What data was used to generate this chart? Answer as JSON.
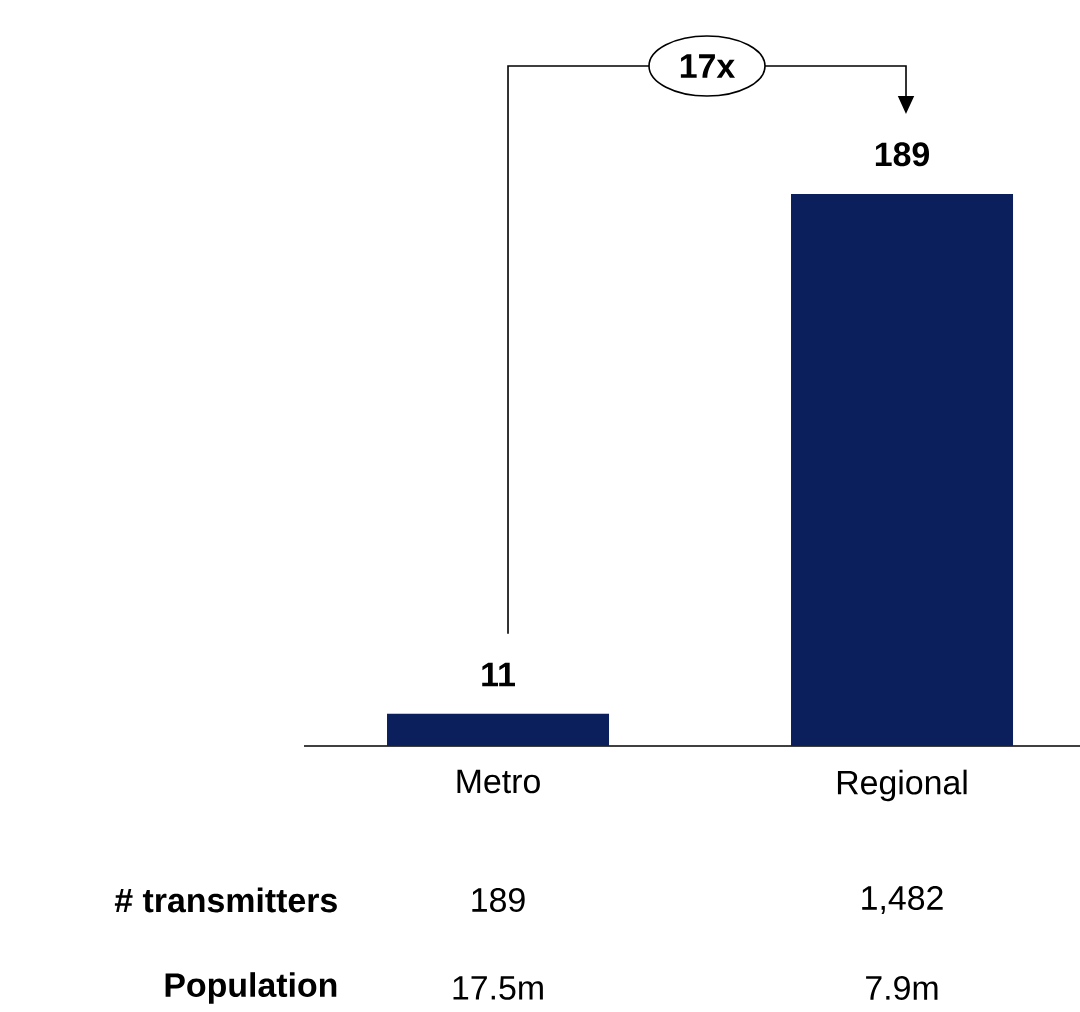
{
  "chart_data": {
    "type": "bar",
    "categories": [
      "Metro",
      "Regional"
    ],
    "values": [
      11,
      189
    ],
    "color": "#0a1f5c",
    "data_labels": true,
    "annotations": [
      "17x",
      "# transmitters",
      "189",
      "1,482",
      "Population",
      "17.5m",
      "7.9m"
    ]
  }
}
